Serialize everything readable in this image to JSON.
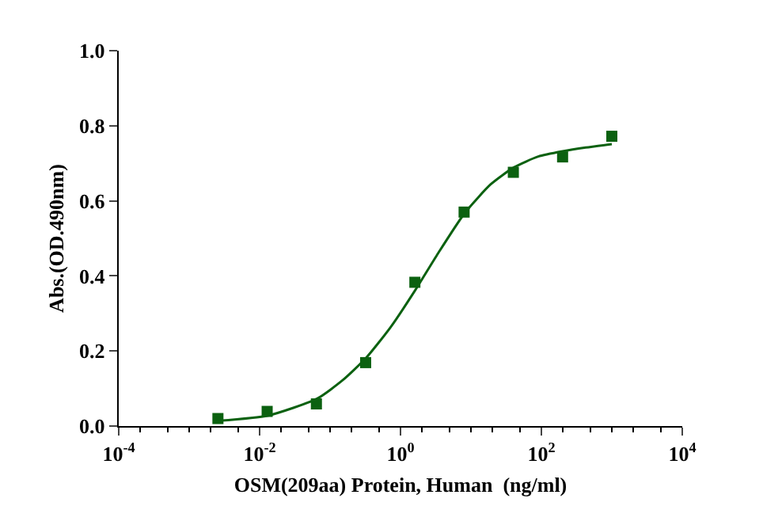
{
  "chart_data": {
    "type": "scatter",
    "xlabel": "OSM(209aa) Protein, Human  (ng/ml)",
    "ylabel": "Abs.(OD.490nm)",
    "log": "x",
    "grid": false,
    "xlim": [
      0.0001,
      10000
    ],
    "xticks": [
      {
        "value": 0.0001,
        "label": "10$^{-4}$"
      },
      {
        "value": 0.01,
        "label": "10$^{-2}$"
      },
      {
        "value": 1,
        "label": "10$^{0}$"
      },
      {
        "value": 100,
        "label": "10$^{2}$"
      },
      {
        "value": 10000,
        "label": "10$^{4}$"
      }
    ],
    "ylim": [
      0,
      1
    ],
    "yticks": [
      {
        "value": 0,
        "label": "0.0"
      },
      0.2,
      0.4,
      0.6,
      0.8,
      {
        "value": 1,
        "label": "1.0"
      }
    ],
    "series": [
      {
        "marker": "square",
        "color": "#0b6110",
        "x": [
          0.00256,
          0.0128,
          0.064,
          0.32,
          1.6,
          8,
          40,
          200,
          1000
        ],
        "values": [
          0.02,
          0.039,
          0.059,
          0.169,
          0.383,
          0.57,
          0.676,
          0.717,
          0.772
        ]
      },
      {
        "type": "line",
        "marker": "none",
        "color": "#0b6110",
        "x": [
          0.00265,
          0.0132,
          0.0655,
          0.153,
          0.326,
          0.721,
          1.62,
          3.41,
          8.06,
          19.1,
          40.7,
          90.2,
          200,
          426,
          1000
        ],
        "values": [
          0.014,
          0.028,
          0.073,
          0.123,
          0.182,
          0.263,
          0.362,
          0.46,
          0.566,
          0.644,
          0.689,
          0.718,
          0.732,
          0.742,
          0.751
        ]
      }
    ]
  }
}
